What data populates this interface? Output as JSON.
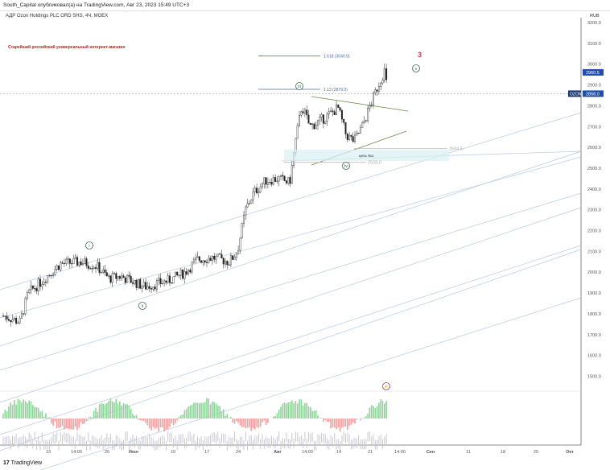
{
  "header": {
    "published": "South_Capital опубликовал(а) на TradingView.com, Авг 23, 2023 15:49 UTC+3",
    "symbol": "АДР Ozon Holdings PLC ORD SHS, 4Ч, MOEX",
    "note": "Старейший российский универсальный интернет-магазин"
  },
  "footer": {
    "brand": "TradingView",
    "brand_mark": "17"
  },
  "colors": {
    "up": "#222222",
    "grid_line": "#b8cbe0",
    "fib": "#5068a0",
    "triangle": "#6a8a4a",
    "wave": "#3a6a4a",
    "last": "#1e4fa8",
    "ticker": "#1f3a70",
    "volume_up": "#8fd39a",
    "volume_dn": "#f0a0a0"
  },
  "chart_data": {
    "type": "candlestick",
    "title": "АДР Ozon Holdings PLC ORD SHS, 4Ч, MOEX",
    "currency": "RUB",
    "ylim": [
      1400,
      3200
    ],
    "yticks": [
      "3200.0",
      "3100.0",
      "3000.0",
      "2900.0",
      "2800.0",
      "2700.0",
      "2600.0",
      "2500.0",
      "2400.0",
      "2300.0",
      "2200.0",
      "2100.0",
      "2000.0",
      "1900.0",
      "1800.0",
      "1700.0",
      "1600.0",
      "1500.0"
    ],
    "xticks": [
      "13",
      "14:00",
      "26",
      "Июл",
      "10",
      "17",
      "24",
      "Авг",
      "14:00",
      "14",
      "21",
      "14:00",
      "Сен",
      "11",
      "18",
      "25",
      "Окт"
    ],
    "close_path": [
      1790,
      1760,
      1900,
      1950,
      2040,
      2050,
      2030,
      1970,
      1980,
      1930,
      1960,
      2000,
      2060,
      2070,
      2050,
      2100,
      2300,
      2380,
      2440,
      2450,
      2430,
      2650,
      2800,
      2700,
      2720,
      2760,
      2790,
      2660,
      2630,
      2700,
      2800,
      2900,
      2970,
      2858
    ],
    "last_price": "2858.0",
    "high_label": "2960.5",
    "ticker": "OZON",
    "annotations": {
      "fib_1618": "1.618 (3040.0)",
      "fib_113": "1.13 (2879.0)",
      "level_1": "2594.5",
      "level_2": "2528.0",
      "target": "цель №1",
      "wave_count": "3",
      "waves": [
        "i",
        "ii",
        "iii",
        "iv",
        "v"
      ]
    }
  }
}
